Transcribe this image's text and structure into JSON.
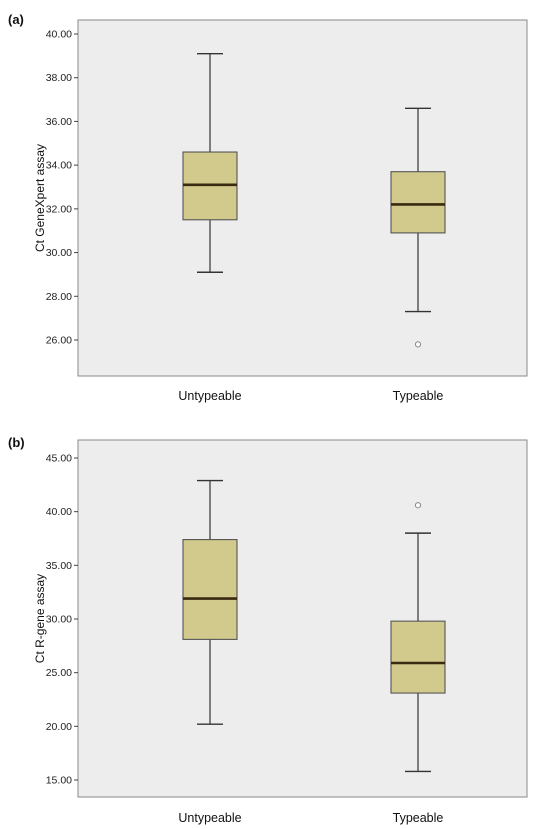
{
  "chart_data": [
    {
      "type": "box",
      "panel_label": "(a)",
      "ylabel": "Ct GeneXpert assay",
      "ylim": [
        24.8,
        40.0
      ],
      "yticks": [
        "40.00",
        "38.00",
        "36.00",
        "34.00",
        "32.00",
        "30.00",
        "28.00",
        "26.00"
      ],
      "ytick_values": [
        40,
        38,
        36,
        34,
        32,
        30,
        28,
        26
      ],
      "categories": [
        "Untypeable",
        "Typeable"
      ],
      "boxes": [
        {
          "category": "Untypeable",
          "whisker_low": 29.1,
          "q1": 31.5,
          "median": 33.1,
          "q3": 34.6,
          "whisker_high": 39.1,
          "outliers": []
        },
        {
          "category": "Typeable",
          "whisker_low": 27.3,
          "q1": 30.9,
          "median": 32.2,
          "q3": 33.7,
          "whisker_high": 36.6,
          "outliers": [
            25.8
          ]
        }
      ],
      "box_color": "#d2c98c",
      "grid": false
    },
    {
      "type": "box",
      "panel_label": "(b)",
      "ylabel": "Ct R-gene assay",
      "ylim": [
        13.3,
        45.0
      ],
      "yticks": [
        "45.00",
        "40.00",
        "35.00",
        "30.00",
        "25.00",
        "20.00",
        "15.00"
      ],
      "ytick_values": [
        45,
        40,
        35,
        30,
        25,
        20,
        15
      ],
      "categories": [
        "Untypeable",
        "Typeable"
      ],
      "boxes": [
        {
          "category": "Untypeable",
          "whisker_low": 20.2,
          "q1": 28.1,
          "median": 31.9,
          "q3": 37.4,
          "whisker_high": 42.9,
          "outliers": []
        },
        {
          "category": "Typeable",
          "whisker_low": 15.8,
          "q1": 23.1,
          "median": 25.9,
          "q3": 29.8,
          "whisker_high": 38.0,
          "outliers": [
            40.6
          ]
        }
      ],
      "box_color": "#d2c98c",
      "grid": false
    }
  ]
}
